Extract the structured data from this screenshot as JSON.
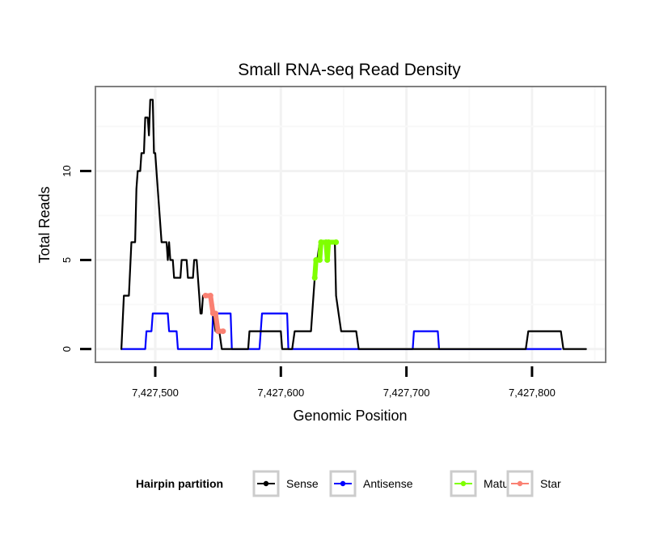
{
  "chart_data": {
    "type": "line",
    "title": "Small RNA-seq Read Density",
    "xlabel": "Genomic Position",
    "ylabel": "Total Reads",
    "xlim": [
      7427453,
      7427858
    ],
    "ylim": [
      -0.7,
      14.7
    ],
    "x_ticks": [
      7427500,
      7427600,
      7427700,
      7427800
    ],
    "x_tick_labels": [
      "7,427,500",
      "7,427,600",
      "7,427,700",
      "7,427,800"
    ],
    "y_ticks": [
      0,
      5,
      10
    ],
    "y_tick_labels": [
      "0",
      "5",
      "10"
    ],
    "grid": true,
    "legend": {
      "title": "Hairpin partition",
      "position": "bottom",
      "entries": [
        "Sense",
        "Antisense",
        "Mature",
        "Star"
      ]
    },
    "colors": {
      "Sense": "#000000",
      "Antisense": "#0000ff",
      "Mature": "#7fff00",
      "Star": "#fa8072"
    },
    "series": [
      {
        "name": "Sense",
        "points": [
          [
            7427473,
            0
          ],
          [
            7427475,
            3
          ],
          [
            7427479,
            3
          ],
          [
            7427481,
            6
          ],
          [
            7427484,
            6
          ],
          [
            7427485,
            9
          ],
          [
            7427486,
            10
          ],
          [
            7427488,
            10
          ],
          [
            7427489,
            11
          ],
          [
            7427491,
            11
          ],
          [
            7427492,
            13
          ],
          [
            7427494,
            13
          ],
          [
            7427495,
            12
          ],
          [
            7427496,
            14
          ],
          [
            7427498,
            14
          ],
          [
            7427499,
            11
          ],
          [
            7427500,
            11
          ],
          [
            7427501,
            10
          ],
          [
            7427505,
            6
          ],
          [
            7427509,
            6
          ],
          [
            7427510,
            5
          ],
          [
            7427511,
            6
          ],
          [
            7427512,
            5
          ],
          [
            7427514,
            5
          ],
          [
            7427515,
            4
          ],
          [
            7427520,
            4
          ],
          [
            7427521,
            5
          ],
          [
            7427525,
            5
          ],
          [
            7427526,
            4
          ],
          [
            7427530,
            4
          ],
          [
            7427531,
            5
          ],
          [
            7427533,
            5
          ],
          [
            7427535,
            3
          ],
          [
            7427536,
            2
          ],
          [
            7427537,
            2
          ],
          [
            7427538,
            3
          ],
          [
            7427544,
            3
          ],
          [
            7427546,
            2
          ],
          [
            7427548,
            1
          ],
          [
            7427551,
            1
          ],
          [
            7427553,
            0
          ],
          [
            7427557,
            0
          ],
          [
            7427574,
            0
          ],
          [
            7427575,
            1
          ],
          [
            7427600,
            1
          ],
          [
            7427601,
            0
          ],
          [
            7427609,
            0
          ],
          [
            7427611,
            1
          ],
          [
            7427624,
            1
          ],
          [
            7427625,
            2
          ],
          [
            7427627,
            4
          ],
          [
            7427629,
            5
          ],
          [
            7427631,
            6
          ],
          [
            7427636,
            6
          ],
          [
            7427637,
            5
          ],
          [
            7427638,
            6
          ],
          [
            7427643,
            6
          ],
          [
            7427644,
            3
          ],
          [
            7427646,
            2
          ],
          [
            7427648,
            1
          ],
          [
            7427660,
            1
          ],
          [
            7427662,
            0
          ],
          [
            7427795,
            0
          ],
          [
            7427797,
            1
          ],
          [
            7427823,
            1
          ],
          [
            7427825,
            0
          ],
          [
            7427843,
            0
          ]
        ]
      },
      {
        "name": "Antisense",
        "points": [
          [
            7427473,
            0
          ],
          [
            7427492,
            0
          ],
          [
            7427493,
            1
          ],
          [
            7427497,
            1
          ],
          [
            7427498,
            2
          ],
          [
            7427510,
            2
          ],
          [
            7427511,
            1
          ],
          [
            7427517,
            1
          ],
          [
            7427518,
            0
          ],
          [
            7427545,
            0
          ],
          [
            7427546,
            2
          ],
          [
            7427560,
            2
          ],
          [
            7427561,
            0
          ],
          [
            7427583,
            0
          ],
          [
            7427585,
            2
          ],
          [
            7427605,
            2
          ],
          [
            7427606,
            0
          ],
          [
            7427705,
            0
          ],
          [
            7427706,
            1
          ],
          [
            7427725,
            1
          ],
          [
            7427726,
            0
          ],
          [
            7427823,
            0
          ]
        ]
      },
      {
        "name": "Mature",
        "points": [
          [
            7427627,
            4
          ],
          [
            7427628,
            5
          ],
          [
            7427631,
            5
          ],
          [
            7427632,
            6
          ],
          [
            7427636,
            6
          ],
          [
            7427637,
            5
          ],
          [
            7427638,
            6
          ],
          [
            7427644,
            6
          ]
        ]
      },
      {
        "name": "Star",
        "points": [
          [
            7427540,
            3
          ],
          [
            7427544,
            3
          ],
          [
            7427546,
            2
          ],
          [
            7427548,
            2
          ],
          [
            7427550,
            1
          ],
          [
            7427554,
            1
          ]
        ]
      }
    ]
  }
}
